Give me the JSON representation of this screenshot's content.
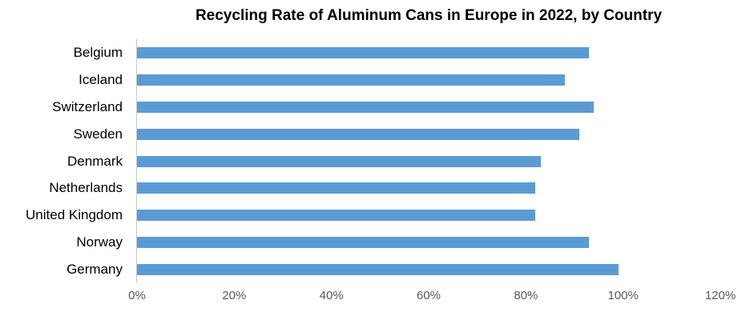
{
  "chart_data": {
    "type": "bar",
    "orientation": "horizontal",
    "title": "Recycling Rate of Aluminum Cans in Europe in 2022, by Country",
    "categories": [
      "Belgium",
      "Iceland",
      "Switzerland",
      "Sweden",
      "Denmark",
      "Netherlands",
      "United Kingdom",
      "Norway",
      "Germany"
    ],
    "values": [
      93,
      88,
      94,
      91,
      83,
      82,
      82,
      93,
      99
    ],
    "value_unit": "%",
    "xlabel": "",
    "ylabel": "",
    "xlim": [
      0,
      120
    ],
    "x_tick_values": [
      0,
      20,
      40,
      60,
      80,
      100,
      120
    ],
    "x_tick_labels": [
      "0%",
      "20%",
      "40%",
      "60%",
      "80%",
      "100%",
      "120%"
    ],
    "grid": false,
    "legend": false,
    "colors": {
      "bar": "#5B9BD5",
      "title_text": "#000000",
      "category_text": "#000000",
      "tick_text": "#595959",
      "axis_line": "#C9C9C9",
      "background": "#FFFFFF"
    }
  }
}
